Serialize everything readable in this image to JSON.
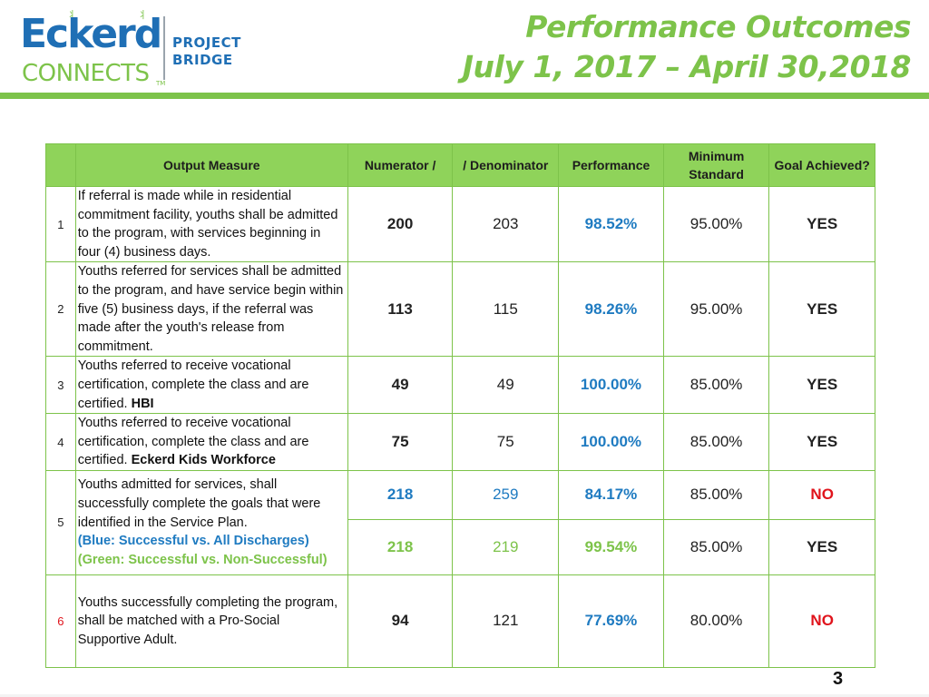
{
  "logo": {
    "brand": "Eckerd",
    "sub": "CONNECTS",
    "tm": "TM",
    "project": "PROJECT",
    "bridge": "BRIDGE"
  },
  "title": {
    "line1": "Performance Outcomes",
    "line2": "July 1, 2017 – April 30,2018"
  },
  "table": {
    "headers": {
      "blank": "",
      "measure": "Output Measure",
      "numerator": "Numerator /",
      "denominator": "/ Denominator",
      "performance": "Performance",
      "minimum": "Minimum Standard",
      "goal": "Goal Achieved?"
    },
    "rows": [
      {
        "num": "1",
        "measure": "If referral is made while in residential commitment facility, youths shall be admitted to the program, with services beginning in four (4) business days.",
        "numerator": "200",
        "denominator": "203",
        "performance": "98.52%",
        "minimum": "95.00%",
        "goal": "YES"
      },
      {
        "num": "2",
        "measure": "Youths referred for services shall be admitted to the program, and have service begin within five (5) business days, if the referral was made after the youth's release from commitment.",
        "numerator": "113",
        "denominator": "115",
        "performance": "98.26%",
        "minimum": "95.00%",
        "goal": "YES"
      },
      {
        "num": "3",
        "measure": "Youths referred to receive vocational certification, complete the class and are certified.",
        "measure_bold": "HBI",
        "numerator": "49",
        "denominator": "49",
        "performance": "100.00%",
        "minimum": "85.00%",
        "goal": "YES"
      },
      {
        "num": "4",
        "measure": "Youths referred to receive vocational certification, complete the class and are certified.",
        "measure_bold": "Eckerd Kids Workforce",
        "numerator": "75",
        "denominator": "75",
        "performance": "100.00%",
        "minimum": "85.00%",
        "goal": "YES"
      },
      {
        "num": "5",
        "measure": "Youths admitted for services, shall successfully complete the goals that were identified in the Service Plan.",
        "legend_blue": "(Blue: Successful vs. All Discharges)",
        "legend_green": "(Green: Successful vs. Non-Successful)",
        "a": {
          "numerator": "218",
          "denominator": "259",
          "performance": "84.17%",
          "minimum": "85.00%",
          "goal": "NO"
        },
        "b": {
          "numerator": "218",
          "denominator": "219",
          "performance": "99.54%",
          "minimum": "85.00%",
          "goal": "YES"
        }
      },
      {
        "num": "6",
        "measure": "Youths successfully completing the program, shall be matched with a Pro-Social Supportive Adult.",
        "numerator": "94",
        "denominator": "121",
        "performance": "77.69%",
        "minimum": "80.00%",
        "goal": "NO"
      }
    ]
  },
  "page_number": "3",
  "colors": {
    "green": "#7dc34a",
    "blue": "#1f7bc1",
    "red": "#e0141c",
    "header_bg": "#8fd35a"
  }
}
